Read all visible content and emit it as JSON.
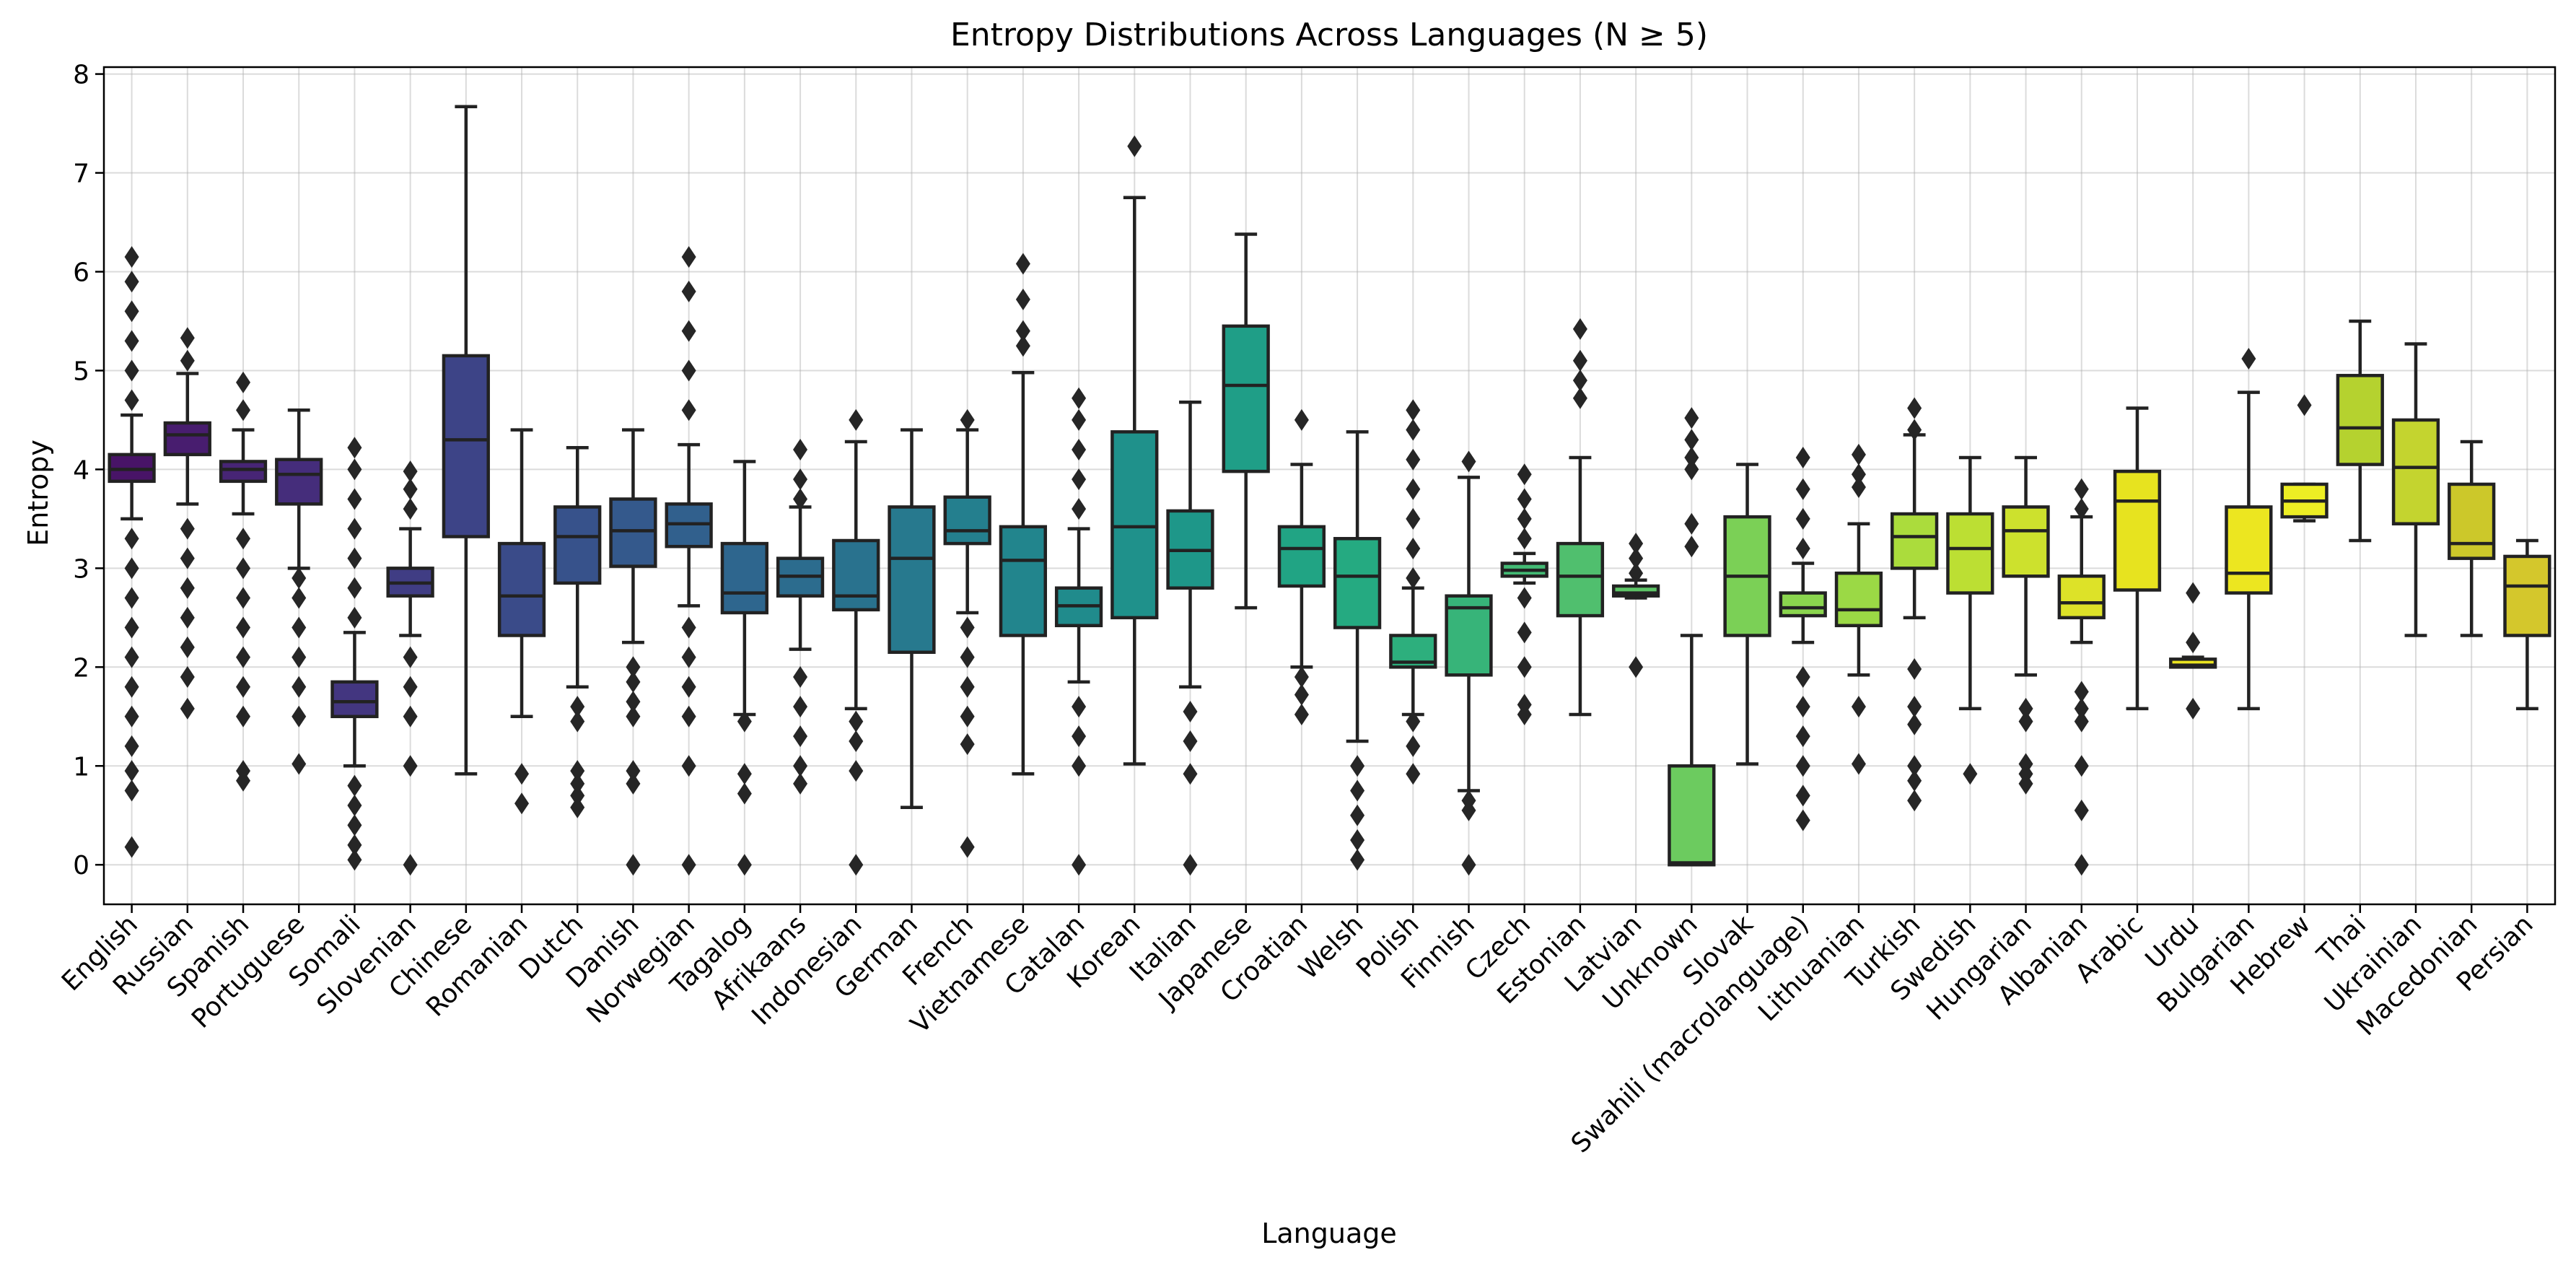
{
  "chart_data": {
    "type": "box",
    "title": "Entropy Distributions Across Languages (N ≥ 5)",
    "xlabel": "Language",
    "ylabel": "Entropy",
    "ylim": [
      -0.4,
      8.07
    ],
    "yticks": [
      0,
      1,
      2,
      3,
      4,
      5,
      6,
      7,
      8
    ],
    "grid": true,
    "categories": [
      "English",
      "Russian",
      "Spanish",
      "Portuguese",
      "Somali",
      "Slovenian",
      "Chinese",
      "Romanian",
      "Dutch",
      "Danish",
      "Norwegian",
      "Tagalog",
      "Afrikaans",
      "Indonesian",
      "German",
      "French",
      "Vietnamese",
      "Catalan",
      "Korean",
      "Italian",
      "Japanese",
      "Croatian",
      "Welsh",
      "Polish",
      "Finnish",
      "Czech",
      "Estonian",
      "Latvian",
      "Unknown",
      "Slovak",
      "Swahili (macrolanguage)",
      "Lithuanian",
      "Turkish",
      "Swedish",
      "Hungarian",
      "Albanian",
      "Arabic",
      "Urdu",
      "Bulgarian",
      "Hebrew",
      "Thai",
      "Ukrainian",
      "Macedonian",
      "Persian"
    ],
    "colors": [
      "#481467",
      "#481d6f",
      "#472575",
      "#452d7b",
      "#433680",
      "#403d84",
      "#3d4487",
      "#3a4b89",
      "#37528b",
      "#34598c",
      "#31608d",
      "#2e668e",
      "#2c6c8e",
      "#29728e",
      "#27798e",
      "#247f8e",
      "#22858d",
      "#208b8c",
      "#1f918b",
      "#1e9789",
      "#1f9e87",
      "#21a484",
      "#25aa81",
      "#2daf7d",
      "#37b479",
      "#43ba74",
      "#50bf6e",
      "#5dc566",
      "#6ccb5f",
      "#7bd056",
      "#8ad54e",
      "#9bd945",
      "#abdc3c",
      "#bcdf33",
      "#cde12d",
      "#dde228",
      "#e7e31f",
      "#eae420",
      "#ece620",
      "#edee24",
      "#b5d22f",
      "#c4d42f",
      "#ccc82a",
      "#d4c72c"
    ],
    "boxes": [
      {
        "whisker_low": 3.5,
        "q1": 3.88,
        "median": 4.0,
        "q3": 4.15,
        "whisker_high": 4.55,
        "outliers": [
          0.18,
          0.75,
          0.95,
          1.2,
          1.5,
          1.8,
          2.1,
          2.4,
          2.7,
          3.0,
          3.3,
          4.7,
          5.0,
          5.3,
          5.6,
          5.9,
          6.15
        ]
      },
      {
        "whisker_low": 3.65,
        "q1": 4.15,
        "median": 4.35,
        "q3": 4.47,
        "whisker_high": 4.97,
        "outliers": [
          1.58,
          1.9,
          2.2,
          2.5,
          2.8,
          3.1,
          3.4,
          5.1,
          5.33
        ]
      },
      {
        "whisker_low": 3.55,
        "q1": 3.88,
        "median": 4.0,
        "q3": 4.08,
        "whisker_high": 4.4,
        "outliers": [
          0.85,
          0.95,
          1.5,
          1.8,
          2.1,
          2.4,
          2.7,
          3.0,
          3.3,
          4.6,
          4.88
        ]
      },
      {
        "whisker_low": 3.0,
        "q1": 3.65,
        "median": 3.95,
        "q3": 4.1,
        "whisker_high": 4.6,
        "outliers": [
          1.02,
          1.5,
          1.8,
          2.1,
          2.4,
          2.7,
          2.9
        ]
      },
      {
        "whisker_low": 1.0,
        "q1": 1.5,
        "median": 1.65,
        "q3": 1.85,
        "whisker_high": 2.35,
        "outliers": [
          0.05,
          0.2,
          0.4,
          0.6,
          0.8,
          2.5,
          2.8,
          3.1,
          3.4,
          3.7,
          4.0,
          4.22
        ]
      },
      {
        "whisker_low": 2.32,
        "q1": 2.72,
        "median": 2.85,
        "q3": 3.0,
        "whisker_high": 3.4,
        "outliers": [
          0.0,
          1.0,
          1.5,
          1.8,
          2.1,
          3.6,
          3.8,
          3.98
        ]
      },
      {
        "whisker_low": 0.92,
        "q1": 3.32,
        "median": 4.3,
        "q3": 5.15,
        "whisker_high": 7.67,
        "outliers": []
      },
      {
        "whisker_low": 1.5,
        "q1": 2.32,
        "median": 2.72,
        "q3": 3.25,
        "whisker_high": 4.4,
        "outliers": [
          0.62,
          0.92
        ]
      },
      {
        "whisker_low": 1.8,
        "q1": 2.85,
        "median": 3.32,
        "q3": 3.62,
        "whisker_high": 4.22,
        "outliers": [
          0.58,
          0.7,
          0.82,
          0.95,
          1.45,
          1.6
        ]
      },
      {
        "whisker_low": 2.25,
        "q1": 3.02,
        "median": 3.38,
        "q3": 3.7,
        "whisker_high": 4.4,
        "outliers": [
          0.0,
          0.82,
          0.95,
          1.5,
          1.65,
          1.85,
          2.0
        ]
      },
      {
        "whisker_low": 2.62,
        "q1": 3.22,
        "median": 3.45,
        "q3": 3.65,
        "whisker_high": 4.25,
        "outliers": [
          0.0,
          1.0,
          1.5,
          1.8,
          2.1,
          2.4,
          4.6,
          5.0,
          5.4,
          5.8,
          6.15
        ]
      },
      {
        "whisker_low": 1.52,
        "q1": 2.55,
        "median": 2.75,
        "q3": 3.25,
        "whisker_high": 4.08,
        "outliers": [
          0.0,
          0.72,
          0.92,
          1.45
        ]
      },
      {
        "whisker_low": 2.18,
        "q1": 2.72,
        "median": 2.92,
        "q3": 3.1,
        "whisker_high": 3.62,
        "outliers": [
          0.82,
          1.0,
          1.3,
          1.6,
          1.9,
          3.7,
          3.9,
          4.2
        ]
      },
      {
        "whisker_low": 1.58,
        "q1": 2.58,
        "median": 2.72,
        "q3": 3.28,
        "whisker_high": 4.28,
        "outliers": [
          0.0,
          0.95,
          1.25,
          1.45,
          4.5
        ]
      },
      {
        "whisker_low": 0.58,
        "q1": 2.15,
        "median": 3.1,
        "q3": 3.62,
        "whisker_high": 4.4,
        "outliers": []
      },
      {
        "whisker_low": 2.55,
        "q1": 3.25,
        "median": 3.38,
        "q3": 3.72,
        "whisker_high": 4.4,
        "outliers": [
          0.18,
          1.22,
          1.5,
          1.8,
          2.1,
          2.4,
          4.5
        ]
      },
      {
        "whisker_low": 0.92,
        "q1": 2.32,
        "median": 3.08,
        "q3": 3.42,
        "whisker_high": 4.98,
        "outliers": [
          5.25,
          5.4,
          5.72,
          6.08
        ]
      },
      {
        "whisker_low": 1.85,
        "q1": 2.42,
        "median": 2.62,
        "q3": 2.8,
        "whisker_high": 3.4,
        "outliers": [
          0.0,
          1.0,
          1.3,
          1.6,
          3.6,
          3.9,
          4.2,
          4.5,
          4.72
        ]
      },
      {
        "whisker_low": 1.02,
        "q1": 2.5,
        "median": 3.42,
        "q3": 4.38,
        "whisker_high": 6.75,
        "outliers": [
          7.27
        ]
      },
      {
        "whisker_low": 1.8,
        "q1": 2.8,
        "median": 3.18,
        "q3": 3.58,
        "whisker_high": 4.68,
        "outliers": [
          0.0,
          0.92,
          1.25,
          1.55
        ]
      },
      {
        "whisker_low": 2.6,
        "q1": 3.98,
        "median": 4.85,
        "q3": 5.45,
        "whisker_high": 6.38,
        "outliers": []
      },
      {
        "whisker_low": 2.0,
        "q1": 2.82,
        "median": 3.2,
        "q3": 3.42,
        "whisker_high": 4.05,
        "outliers": [
          1.52,
          1.72,
          1.9,
          4.5
        ]
      },
      {
        "whisker_low": 1.25,
        "q1": 2.4,
        "median": 2.92,
        "q3": 3.3,
        "whisker_high": 4.38,
        "outliers": [
          0.05,
          0.25,
          0.5,
          0.75,
          1.0
        ]
      },
      {
        "whisker_low": 1.52,
        "q1": 2.0,
        "median": 2.05,
        "q3": 2.32,
        "whisker_high": 2.8,
        "outliers": [
          0.92,
          1.2,
          1.45,
          2.9,
          3.2,
          3.5,
          3.8,
          4.1,
          4.4,
          4.6
        ]
      },
      {
        "whisker_low": 0.75,
        "q1": 1.92,
        "median": 2.6,
        "q3": 2.72,
        "whisker_high": 3.92,
        "outliers": [
          0.0,
          0.55,
          0.65,
          4.08
        ]
      },
      {
        "whisker_low": 2.85,
        "q1": 2.92,
        "median": 2.98,
        "q3": 3.05,
        "whisker_high": 3.15,
        "outliers": [
          1.52,
          1.62,
          2.0,
          2.35,
          2.7,
          3.3,
          3.5,
          3.7,
          3.95
        ]
      },
      {
        "whisker_low": 1.52,
        "q1": 2.52,
        "median": 2.92,
        "q3": 3.25,
        "whisker_high": 4.12,
        "outliers": [
          4.72,
          4.9,
          5.1,
          5.42
        ]
      },
      {
        "whisker_low": 2.7,
        "q1": 2.72,
        "median": 2.75,
        "q3": 2.82,
        "whisker_high": 2.88,
        "outliers": [
          2.0,
          2.95,
          3.1,
          3.25
        ]
      },
      {
        "whisker_low": 0.0,
        "q1": 0.0,
        "median": 0.02,
        "q3": 1.0,
        "whisker_high": 2.32,
        "outliers": [
          3.22,
          3.45,
          4.0,
          4.12,
          4.3,
          4.52
        ]
      },
      {
        "whisker_low": 1.02,
        "q1": 2.32,
        "median": 2.92,
        "q3": 3.52,
        "whisker_high": 4.05,
        "outliers": []
      },
      {
        "whisker_low": 2.25,
        "q1": 2.52,
        "median": 2.6,
        "q3": 2.75,
        "whisker_high": 3.05,
        "outliers": [
          0.45,
          0.7,
          1.0,
          1.3,
          1.6,
          1.9,
          3.2,
          3.5,
          3.8,
          4.12
        ]
      },
      {
        "whisker_low": 1.92,
        "q1": 2.42,
        "median": 2.58,
        "q3": 2.95,
        "whisker_high": 3.45,
        "outliers": [
          1.02,
          1.6,
          3.82,
          3.95,
          4.15
        ]
      },
      {
        "whisker_low": 2.5,
        "q1": 3.0,
        "median": 3.32,
        "q3": 3.55,
        "whisker_high": 4.35,
        "outliers": [
          0.65,
          0.85,
          1.0,
          1.42,
          1.6,
          1.98,
          4.4,
          4.62
        ]
      },
      {
        "whisker_low": 1.58,
        "q1": 2.75,
        "median": 3.2,
        "q3": 3.55,
        "whisker_high": 4.12,
        "outliers": [
          0.92
        ]
      },
      {
        "whisker_low": 1.92,
        "q1": 2.92,
        "median": 3.38,
        "q3": 3.62,
        "whisker_high": 4.12,
        "outliers": [
          0.82,
          0.92,
          1.02,
          1.45,
          1.58
        ]
      },
      {
        "whisker_low": 2.25,
        "q1": 2.5,
        "median": 2.65,
        "q3": 2.92,
        "whisker_high": 3.52,
        "outliers": [
          0.0,
          0.55,
          1.0,
          1.45,
          1.58,
          1.75,
          3.6,
          3.8
        ]
      },
      {
        "whisker_low": 1.58,
        "q1": 2.78,
        "median": 3.68,
        "q3": 3.98,
        "whisker_high": 4.62,
        "outliers": []
      },
      {
        "whisker_low": 2.0,
        "q1": 2.0,
        "median": 2.02,
        "q3": 2.08,
        "whisker_high": 2.1,
        "outliers": [
          1.58,
          2.25,
          2.75
        ]
      },
      {
        "whisker_low": 1.58,
        "q1": 2.75,
        "median": 2.95,
        "q3": 3.62,
        "whisker_high": 4.78,
        "outliers": [
          5.12
        ]
      },
      {
        "whisker_low": 3.48,
        "q1": 3.52,
        "median": 3.68,
        "q3": 3.85,
        "whisker_high": 3.85,
        "outliers": [
          4.65
        ]
      },
      {
        "whisker_low": 3.28,
        "q1": 4.05,
        "median": 4.42,
        "q3": 4.95,
        "whisker_high": 5.5,
        "outliers": []
      },
      {
        "whisker_low": 2.32,
        "q1": 3.45,
        "median": 4.02,
        "q3": 4.5,
        "whisker_high": 5.27,
        "outliers": []
      },
      {
        "whisker_low": 2.32,
        "q1": 3.1,
        "median": 3.25,
        "q3": 3.85,
        "whisker_high": 4.28,
        "outliers": []
      },
      {
        "whisker_low": 1.58,
        "q1": 2.32,
        "median": 2.82,
        "q3": 3.12,
        "whisker_high": 3.28,
        "outliers": []
      }
    ]
  }
}
